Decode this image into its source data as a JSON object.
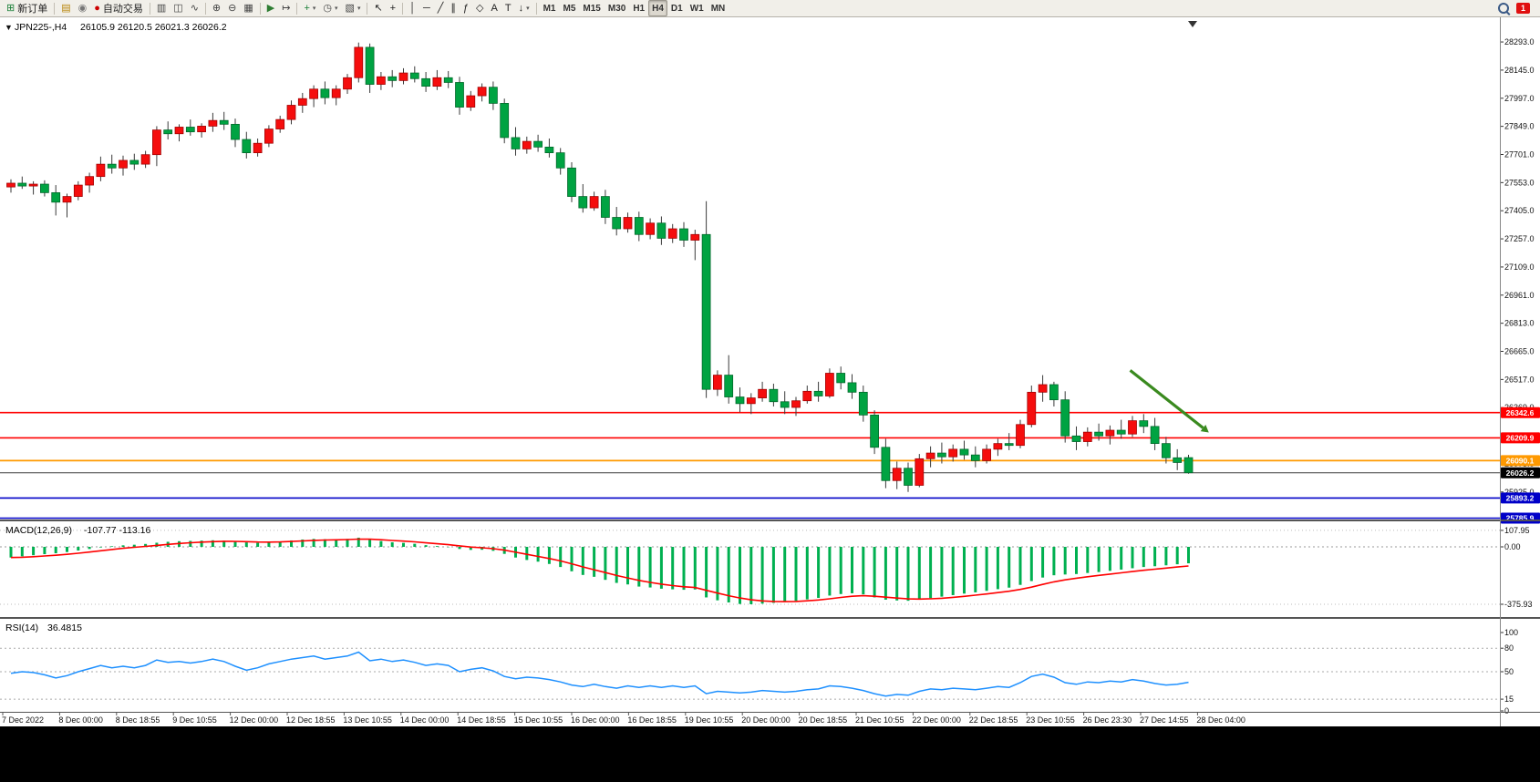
{
  "toolbar": {
    "items": [
      {
        "icon": "new-order-icon",
        "label": "新订单",
        "name": "new-order-button"
      },
      {
        "sep": true
      },
      {
        "icon": "market-watch-icon",
        "name": "market-watch-button"
      },
      {
        "icon": "sound-icon",
        "name": "alerts-button"
      },
      {
        "icon": "autotrading-icon",
        "label": "自动交易",
        "name": "autotrading-button"
      },
      {
        "sep": true
      },
      {
        "icon": "bar-chart-icon",
        "name": "bar-chart-button"
      },
      {
        "icon": "candlestick-icon",
        "name": "candlestick-button"
      },
      {
        "icon": "line-chart-icon",
        "name": "line-chart-button"
      },
      {
        "sep": true
      },
      {
        "icon": "zoom-in-icon",
        "name": "zoom-in-button"
      },
      {
        "icon": "zoom-out-icon",
        "name": "zoom-out-button"
      },
      {
        "icon": "tile-windows-icon",
        "name": "tile-windows-button"
      },
      {
        "sep": true
      },
      {
        "icon": "auto-scroll-icon",
        "name": "auto-scroll-button"
      },
      {
        "icon": "chart-shift-icon",
        "name": "chart-shift-button"
      },
      {
        "sep": true
      },
      {
        "icon": "indicators-icon",
        "name": "indicators-button",
        "caret": true
      },
      {
        "icon": "periods-icon",
        "name": "periods-button",
        "caret": true
      },
      {
        "icon": "templates-icon",
        "name": "templates-button",
        "caret": true
      },
      {
        "sep": true
      },
      {
        "icon": "cursor-icon",
        "name": "cursor-button"
      },
      {
        "icon": "crosshair-icon",
        "name": "crosshair-button"
      },
      {
        "sep": true
      },
      {
        "icon": "vertical-line-icon",
        "name": "vertical-line-button"
      },
      {
        "icon": "horizontal-line-icon",
        "name": "horizontal-line-button"
      },
      {
        "icon": "trendline-icon",
        "name": "trendline-button"
      },
      {
        "icon": "channel-icon",
        "name": "channel-button"
      },
      {
        "icon": "fibonacci-icon",
        "name": "fibonacci-button"
      },
      {
        "icon": "shapes-icon",
        "name": "shapes-button"
      },
      {
        "icon": "text-icon",
        "name": "text-button"
      },
      {
        "icon": "text-label-icon",
        "name": "text-label-button"
      },
      {
        "icon": "arrows-icon",
        "name": "arrows-button",
        "caret": true
      },
      {
        "sep": true
      },
      {
        "label": "M1",
        "name": "timeframe-m1-button",
        "tf": true
      },
      {
        "label": "M5",
        "name": "timeframe-m5-button",
        "tf": true
      },
      {
        "label": "M15",
        "name": "timeframe-m15-button",
        "tf": true
      },
      {
        "label": "M30",
        "name": "timeframe-m30-button",
        "tf": true
      },
      {
        "label": "H1",
        "name": "timeframe-h1-button",
        "tf": true
      },
      {
        "label": "H4",
        "name": "timeframe-h4-button",
        "tf": true,
        "active": true
      },
      {
        "label": "D1",
        "name": "timeframe-d1-button",
        "tf": true
      },
      {
        "label": "W1",
        "name": "timeframe-w1-button",
        "tf": true
      },
      {
        "label": "MN",
        "name": "timeframe-mn-button",
        "tf": true
      }
    ],
    "right": {
      "notification_count": "1"
    }
  },
  "chart": {
    "symbol_title": "JPN225-,H4",
    "ohlc_text": "26105.9 26120.5 26021.3 26026.2"
  },
  "chart_data": {
    "type": "candlestick",
    "symbol": "JPN225-",
    "timeframe": "H4",
    "current_ohlc": {
      "open": "26105.9",
      "high": "26120.5",
      "low": "26021.3",
      "close": "26026.2"
    },
    "price_axis_labels": [
      "28293.0",
      "28145.0",
      "27997.0",
      "27849.0",
      "27701.0",
      "27553.0",
      "27405.0",
      "27257.0",
      "27109.0",
      "26961.0",
      "26813.0",
      "26665.0",
      "26517.0",
      "26369.0",
      "26221.0",
      "26073.0",
      "25925.0"
    ],
    "time_labels": [
      "7 Dec 2022",
      "8 Dec 00:00",
      "8 Dec 18:55",
      "9 Dec 10:55",
      "12 Dec 00:00",
      "12 Dec 18:55",
      "13 Dec 10:55",
      "14 Dec 00:00",
      "14 Dec 18:55",
      "15 Dec 10:55",
      "16 Dec 00:00",
      "16 Dec 18:55",
      "19 Dec 10:55",
      "20 Dec 00:00",
      "20 Dec 18:55",
      "21 Dec 10:55",
      "22 Dec 00:00",
      "22 Dec 18:55",
      "23 Dec 10:55",
      "26 Dec 23:30",
      "27 Dec 14:55",
      "28 Dec 04:00"
    ],
    "candles": [
      [
        27530,
        27570,
        27500,
        27550
      ],
      [
        27550,
        27585,
        27520,
        27535
      ],
      [
        27535,
        27560,
        27490,
        27545
      ],
      [
        27545,
        27565,
        27480,
        27500
      ],
      [
        27500,
        27540,
        27380,
        27450
      ],
      [
        27450,
        27495,
        27370,
        27480
      ],
      [
        27480,
        27560,
        27460,
        27540
      ],
      [
        27540,
        27605,
        27500,
        27585
      ],
      [
        27585,
        27690,
        27560,
        27650
      ],
      [
        27650,
        27700,
        27600,
        27630
      ],
      [
        27630,
        27695,
        27590,
        27670
      ],
      [
        27670,
        27705,
        27620,
        27650
      ],
      [
        27650,
        27720,
        27630,
        27700
      ],
      [
        27700,
        27850,
        27640,
        27830
      ],
      [
        27830,
        27875,
        27780,
        27810
      ],
      [
        27810,
        27860,
        27770,
        27845
      ],
      [
        27845,
        27885,
        27800,
        27820
      ],
      [
        27820,
        27865,
        27790,
        27850
      ],
      [
        27850,
        27920,
        27820,
        27880
      ],
      [
        27880,
        27925,
        27830,
        27860
      ],
      [
        27860,
        27890,
        27740,
        27780
      ],
      [
        27780,
        27820,
        27680,
        27710
      ],
      [
        27710,
        27785,
        27690,
        27760
      ],
      [
        27760,
        27855,
        27740,
        27835
      ],
      [
        27835,
        27905,
        27815,
        27885
      ],
      [
        27885,
        27985,
        27860,
        27960
      ],
      [
        27960,
        28025,
        27920,
        27995
      ],
      [
        27995,
        28065,
        27950,
        28045
      ],
      [
        28045,
        28085,
        27965,
        28000
      ],
      [
        28000,
        28065,
        27960,
        28045
      ],
      [
        28045,
        28125,
        28020,
        28105
      ],
      [
        28105,
        28290,
        28080,
        28265
      ],
      [
        28265,
        28285,
        28025,
        28070
      ],
      [
        28070,
        28135,
        28040,
        28110
      ],
      [
        28110,
        28145,
        28055,
        28090
      ],
      [
        28090,
        28155,
        28070,
        28130
      ],
      [
        28130,
        28165,
        28080,
        28100
      ],
      [
        28100,
        28135,
        28030,
        28060
      ],
      [
        28060,
        28145,
        28040,
        28105
      ],
      [
        28105,
        28140,
        28050,
        28080
      ],
      [
        28080,
        28110,
        27910,
        27950
      ],
      [
        27950,
        28035,
        27930,
        28010
      ],
      [
        28010,
        28075,
        27980,
        28055
      ],
      [
        28055,
        28085,
        27935,
        27970
      ],
      [
        27970,
        27995,
        27760,
        27790
      ],
      [
        27790,
        27845,
        27695,
        27730
      ],
      [
        27730,
        27795,
        27705,
        27770
      ],
      [
        27770,
        27805,
        27715,
        27740
      ],
      [
        27740,
        27785,
        27685,
        27710
      ],
      [
        27710,
        27735,
        27595,
        27630
      ],
      [
        27630,
        27660,
        27450,
        27480
      ],
      [
        27480,
        27545,
        27395,
        27420
      ],
      [
        27420,
        27505,
        27405,
        27480
      ],
      [
        27480,
        27515,
        27335,
        27370
      ],
      [
        27370,
        27425,
        27275,
        27310
      ],
      [
        27310,
        27395,
        27290,
        27370
      ],
      [
        27370,
        27400,
        27245,
        27280
      ],
      [
        27280,
        27365,
        27255,
        27340
      ],
      [
        27340,
        27375,
        27225,
        27260
      ],
      [
        27260,
        27335,
        27235,
        27310
      ],
      [
        27310,
        27345,
        27215,
        27250
      ],
      [
        27250,
        27305,
        27145,
        27280
      ],
      [
        27280,
        27455,
        26420,
        26465
      ],
      [
        26465,
        26565,
        26430,
        26540
      ],
      [
        26540,
        26645,
        26390,
        26425
      ],
      [
        26425,
        26475,
        26345,
        26390
      ],
      [
        26390,
        26445,
        26335,
        26420
      ],
      [
        26420,
        26505,
        26400,
        26465
      ],
      [
        26465,
        26495,
        26375,
        26400
      ],
      [
        26400,
        26455,
        26335,
        26370
      ],
      [
        26370,
        26425,
        26325,
        26405
      ],
      [
        26405,
        26485,
        26390,
        26455
      ],
      [
        26455,
        26505,
        26400,
        26430
      ],
      [
        26430,
        26575,
        26420,
        26550
      ],
      [
        26550,
        26585,
        26465,
        26500
      ],
      [
        26500,
        26545,
        26415,
        26450
      ],
      [
        26450,
        26485,
        26295,
        26330
      ],
      [
        26330,
        26355,
        26125,
        26160
      ],
      [
        26160,
        26205,
        25945,
        25985
      ],
      [
        25985,
        26085,
        25940,
        26050
      ],
      [
        26050,
        26080,
        25925,
        25960
      ],
      [
        25960,
        26125,
        25950,
        26100
      ],
      [
        26100,
        26165,
        26055,
        26130
      ],
      [
        26130,
        26185,
        26075,
        26110
      ],
      [
        26110,
        26175,
        26085,
        26150
      ],
      [
        26150,
        26195,
        26095,
        26120
      ],
      [
        26120,
        26165,
        26055,
        26090
      ],
      [
        26090,
        26175,
        26075,
        26150
      ],
      [
        26150,
        26205,
        26115,
        26180
      ],
      [
        26180,
        26235,
        26145,
        26170
      ],
      [
        26170,
        26305,
        26155,
        26280
      ],
      [
        26280,
        26485,
        26265,
        26450
      ],
      [
        26450,
        26540,
        26400,
        26490
      ],
      [
        26490,
        26505,
        26375,
        26410
      ],
      [
        26410,
        26455,
        26185,
        26220
      ],
      [
        26220,
        26270,
        26145,
        26190
      ],
      [
        26190,
        26265,
        26165,
        26240
      ],
      [
        26240,
        26285,
        26195,
        26220
      ],
      [
        26220,
        26275,
        26175,
        26250
      ],
      [
        26250,
        26305,
        26205,
        26230
      ],
      [
        26230,
        26325,
        26215,
        26300
      ],
      [
        26300,
        26335,
        26235,
        26270
      ],
      [
        26270,
        26315,
        26145,
        26180
      ],
      [
        26180,
        26215,
        26075,
        26105
      ],
      [
        26105,
        26150,
        26040,
        26080
      ],
      [
        26105.9,
        26120.5,
        26021.3,
        26026.2
      ]
    ],
    "hlines": [
      {
        "price": 26342.6,
        "label": "26342.6",
        "color": "#FF0000",
        "width": 1.6
      },
      {
        "price": 26209.9,
        "label": "26209.9",
        "color": "#FF0000",
        "width": 1.6
      },
      {
        "price": 26090.1,
        "label": "26090.1",
        "color": "#FF9900",
        "width": 1.8
      },
      {
        "price": 26026.2,
        "label": "26026.2",
        "color": "#3c3c3c",
        "width": 1.0
      },
      {
        "price": 25893.2,
        "label": "25893.2",
        "color": "#0000C8",
        "width": 1.6
      },
      {
        "price": 25785.9,
        "label": "25785.9",
        "color": "#0000C8",
        "width": 1.6
      }
    ],
    "annotation_arrow": {
      "from_bar": 99.8,
      "from_price": 26565,
      "to_bar": 106.3,
      "to_price": 26262,
      "color": "#3a8a1f"
    },
    "macd": {
      "label": "MACD(12,26,9)",
      "values_text": "-107.77 -113.16",
      "axis_labels": [
        {
          "v": 107.95,
          "t": "107.95"
        },
        {
          "v": 0,
          "t": "0.00"
        },
        {
          "v": -375.93,
          "t": "-375.93"
        }
      ],
      "histogram": [
        -70,
        -62,
        -55,
        -48,
        -42,
        -34,
        -24,
        -14,
        -4,
        4,
        10,
        14,
        19,
        27,
        33,
        37,
        39,
        41,
        43,
        41,
        36,
        29,
        26,
        30,
        35,
        42,
        48,
        52,
        50,
        49,
        52,
        60,
        47,
        38,
        30,
        26,
        20,
        11,
        5,
        -2,
        -14,
        -20,
        -19,
        -26,
        -46,
        -70,
        -86,
        -97,
        -112,
        -132,
        -160,
        -184,
        -196,
        -216,
        -236,
        -246,
        -260,
        -266,
        -274,
        -278,
        -281,
        -279,
        -331,
        -350,
        -364,
        -374,
        -376,
        -372,
        -367,
        -361,
        -354,
        -344,
        -334,
        -319,
        -309,
        -304,
        -311,
        -331,
        -346,
        -351,
        -353,
        -346,
        -336,
        -326,
        -316,
        -306,
        -298,
        -288,
        -277,
        -267,
        -249,
        -224,
        -201,
        -186,
        -181,
        -178,
        -171,
        -165,
        -157,
        -149,
        -140,
        -132,
        -127,
        -121,
        -114,
        -107.77
      ]
    },
    "rsi": {
      "label": "RSI(14)",
      "value_text": "36.4815",
      "axis_labels": [
        {
          "v": 100,
          "t": "100"
        },
        {
          "v": 80,
          "t": "80"
        },
        {
          "v": 50,
          "t": "50"
        },
        {
          "v": 15,
          "t": "15"
        },
        {
          "v": 0,
          "t": "0"
        }
      ],
      "levels": [
        80,
        50,
        15
      ],
      "values": [
        48,
        50,
        49,
        46,
        42,
        45,
        50,
        54,
        58,
        55,
        57,
        55,
        58,
        65,
        62,
        63,
        61,
        63,
        66,
        63,
        57,
        52,
        55,
        60,
        63,
        66,
        68,
        70,
        66,
        68,
        70,
        75,
        64,
        66,
        63,
        65,
        62,
        58,
        60,
        58,
        50,
        53,
        55,
        51,
        44,
        41,
        43,
        42,
        40,
        37,
        33,
        31,
        34,
        31,
        29,
        32,
        30,
        32,
        30,
        32,
        30,
        32,
        22,
        25,
        24,
        23,
        24,
        26,
        25,
        24,
        25,
        27,
        28,
        32,
        31,
        29,
        26,
        22,
        19,
        21,
        20,
        25,
        28,
        27,
        29,
        28,
        27,
        29,
        31,
        30,
        36,
        44,
        47,
        43,
        36,
        34,
        37,
        36,
        38,
        37,
        40,
        38,
        35,
        33,
        34,
        36.48
      ]
    },
    "colors": {
      "up": "#F50D0D",
      "down": "#00A342",
      "wick": "#3a3a3a",
      "macd_hist": "#00B050",
      "macd_signal": "#FF0000",
      "rsi_line": "#1E90FF"
    }
  }
}
